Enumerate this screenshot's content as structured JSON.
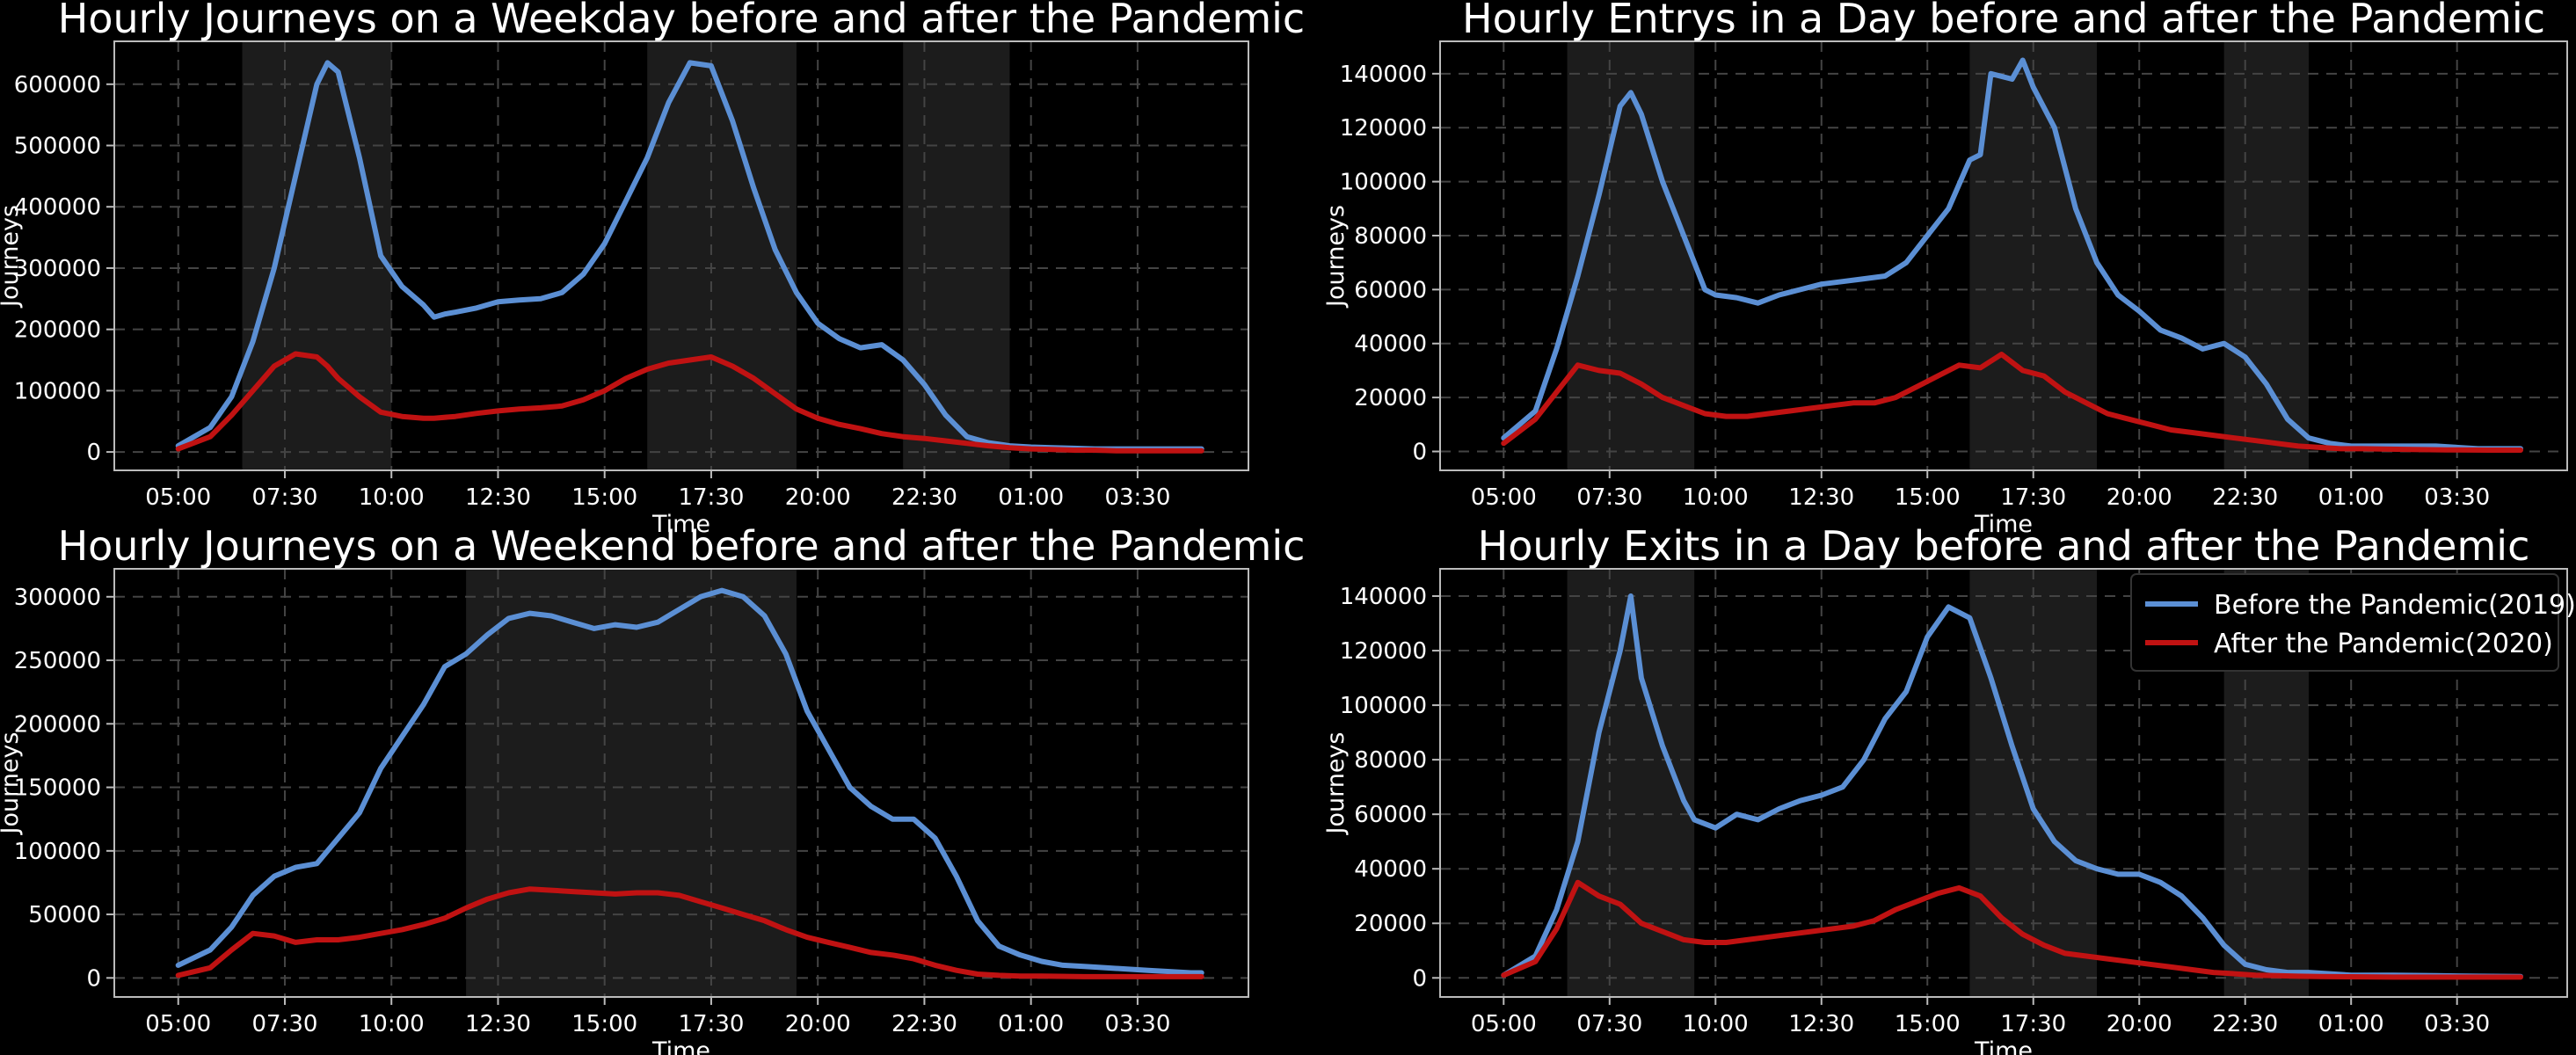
{
  "style": {
    "background": "#000000",
    "before_color": "#5b8fd4",
    "after_color": "#c01212",
    "shade_color": "#1c1c1c",
    "grid_color": "#444444",
    "frame_color": "#bbbbbb",
    "text_color": "#ffffff"
  },
  "chart_data": [
    {
      "type": "line",
      "title": "Hourly Journeys on a Weekday before and after the Pandemic",
      "xlabel": "Time",
      "ylabel": "Journeys",
      "x_tick_labels": [
        "05:00",
        "07:30",
        "10:00",
        "12:30",
        "15:00",
        "17:30",
        "20:00",
        "22:30",
        "01:00",
        "03:30"
      ],
      "x_domain": "hours since 05:00, 00:00 to 24:00 with ticks every 2.5 h",
      "ylim": [
        -30000,
        670000
      ],
      "yticks": [
        0,
        100000,
        200000,
        300000,
        400000,
        500000,
        600000
      ],
      "ytick_labels": [
        "0",
        "100000",
        "200000",
        "300000",
        "400000",
        "500000",
        "600000"
      ],
      "grid": true,
      "shaded_periods": [
        [
          "06:30",
          "10:00"
        ],
        [
          "16:00",
          "19:30"
        ],
        [
          "22:00",
          "00:30"
        ]
      ],
      "series": [
        {
          "name": "Before the Pandemic(2019)",
          "x": [
            0,
            0.75,
            1.25,
            1.75,
            2.25,
            2.75,
            3.25,
            3.5,
            3.75,
            4.25,
            4.75,
            5.25,
            5.75,
            6,
            6.25,
            6.5,
            7,
            7.5,
            8,
            8.5,
            9,
            9.5,
            10,
            10.5,
            11,
            11.5,
            12,
            12.5,
            13,
            13.5,
            14,
            14.5,
            15,
            15.5,
            16,
            16.5,
            17,
            17.5,
            18,
            18.5,
            19,
            19.5,
            20,
            20.5,
            21,
            21.5,
            22,
            22.5,
            23,
            23.5,
            24
          ],
          "y": [
            10000,
            40000,
            90000,
            180000,
            300000,
            450000,
            600000,
            635000,
            620000,
            480000,
            320000,
            270000,
            240000,
            220000,
            225000,
            228000,
            235000,
            245000,
            248000,
            250000,
            260000,
            290000,
            340000,
            410000,
            480000,
            570000,
            635000,
            630000,
            540000,
            430000,
            330000,
            260000,
            210000,
            185000,
            170000,
            175000,
            150000,
            110000,
            60000,
            25000,
            15000,
            10000,
            8000,
            7000,
            6000,
            5000,
            5000,
            5000,
            5000,
            5000,
            5000
          ]
        },
        {
          "name": "After the Pandemic(2020)",
          "x": [
            0,
            0.75,
            1.25,
            1.75,
            2.25,
            2.75,
            3.25,
            3.5,
            3.75,
            4.25,
            4.75,
            5.25,
            5.75,
            6,
            6.5,
            7,
            7.5,
            8,
            8.5,
            9,
            9.5,
            10,
            10.5,
            11,
            11.5,
            12,
            12.5,
            13,
            13.5,
            14,
            14.5,
            15,
            15.5,
            16,
            16.5,
            17,
            17.5,
            18,
            18.5,
            19,
            19.5,
            20,
            20.5,
            21,
            21.5,
            22,
            22.5,
            23,
            23.5,
            24
          ],
          "y": [
            5000,
            25000,
            60000,
            100000,
            140000,
            160000,
            155000,
            140000,
            120000,
            90000,
            65000,
            58000,
            55000,
            55000,
            58000,
            63000,
            67000,
            70000,
            72000,
            75000,
            85000,
            100000,
            120000,
            135000,
            145000,
            150000,
            155000,
            140000,
            120000,
            95000,
            70000,
            55000,
            45000,
            38000,
            30000,
            25000,
            22000,
            18000,
            14000,
            10000,
            7000,
            5000,
            4000,
            3000,
            3000,
            2000,
            2000,
            2000,
            2000,
            2000
          ]
        }
      ]
    },
    {
      "type": "line",
      "title": "Hourly Entrys in a Day before and after the Pandemic",
      "xlabel": "Time",
      "ylabel": "Journeys",
      "x_tick_labels": [
        "05:00",
        "07:30",
        "10:00",
        "12:30",
        "15:00",
        "17:30",
        "20:00",
        "22:30",
        "01:00",
        "03:30"
      ],
      "x_domain": "hours since 05:00, 00:00 to 24:00 with ticks every 2.5 h",
      "ylim": [
        -7000,
        152000
      ],
      "yticks": [
        0,
        20000,
        40000,
        60000,
        80000,
        100000,
        120000,
        140000
      ],
      "ytick_labels": [
        "0",
        "20000",
        "40000",
        "60000",
        "80000",
        "100000",
        "120000",
        "140000"
      ],
      "grid": true,
      "shaded_periods": [
        [
          "06:30",
          "09:30"
        ],
        [
          "16:00",
          "19:00"
        ],
        [
          "22:00",
          "00:00"
        ]
      ],
      "series": [
        {
          "name": "Before the Pandemic(2019)",
          "x": [
            0,
            0.75,
            1.25,
            1.75,
            2.25,
            2.75,
            3,
            3.25,
            3.75,
            4.25,
            4.75,
            5,
            5.5,
            6,
            6.5,
            7,
            7.5,
            8,
            8.5,
            9,
            9.5,
            10,
            10.5,
            11,
            11.25,
            11.5,
            12,
            12.25,
            12.5,
            13,
            13.5,
            14,
            14.5,
            15,
            15.5,
            16,
            16.5,
            17,
            17.5,
            18,
            18.5,
            19,
            19.5,
            20,
            20.5,
            21,
            21.5,
            22,
            23,
            24
          ],
          "y": [
            5000,
            15000,
            38000,
            65000,
            95000,
            128000,
            133000,
            125000,
            100000,
            80000,
            60000,
            58000,
            57000,
            55000,
            58000,
            60000,
            62000,
            63000,
            64000,
            65000,
            70000,
            80000,
            90000,
            108000,
            110000,
            140000,
            138000,
            145000,
            135000,
            120000,
            90000,
            70000,
            58000,
            52000,
            45000,
            42000,
            38000,
            40000,
            35000,
            25000,
            12000,
            5000,
            3000,
            2000,
            2000,
            2000,
            2000,
            2000,
            1000,
            1000
          ]
        },
        {
          "name": "After the Pandemic(2020)",
          "x": [
            0,
            0.75,
            1.25,
            1.75,
            2.25,
            2.75,
            3.25,
            3.75,
            4.25,
            4.75,
            5.25,
            5.75,
            6.25,
            6.75,
            7.25,
            7.75,
            8.25,
            8.75,
            9.25,
            9.75,
            10.25,
            10.75,
            11.25,
            11.75,
            12.25,
            12.75,
            13.25,
            13.75,
            14.25,
            14.75,
            15.25,
            15.75,
            16.25,
            16.75,
            17.25,
            17.75,
            18.25,
            18.75,
            19.25,
            19.75,
            20.25,
            21.25,
            22.25,
            23.25,
            24
          ],
          "y": [
            3000,
            12000,
            22000,
            32000,
            30000,
            29000,
            25000,
            20000,
            17000,
            14000,
            13000,
            13000,
            14000,
            15000,
            16000,
            17000,
            18000,
            18000,
            20000,
            24000,
            28000,
            32000,
            31000,
            36000,
            30000,
            28000,
            22000,
            18000,
            14000,
            12000,
            10000,
            8000,
            7000,
            6000,
            5000,
            4000,
            3000,
            2000,
            1500,
            1000,
            1000,
            800,
            600,
            500,
            500
          ]
        }
      ]
    },
    {
      "type": "line",
      "title": "Hourly Journeys on a Weekend before and after the Pandemic",
      "xlabel": "Time",
      "ylabel": "Journeys",
      "x_tick_labels": [
        "05:00",
        "07:30",
        "10:00",
        "12:30",
        "15:00",
        "17:30",
        "20:00",
        "22:30",
        "01:00",
        "03:30"
      ],
      "x_domain": "hours since 05:00, 00:00 to 24:00 with ticks every 2.5 h",
      "ylim": [
        -15000,
        322000
      ],
      "yticks": [
        0,
        50000,
        100000,
        150000,
        200000,
        250000,
        300000
      ],
      "ytick_labels": [
        "0",
        "50000",
        "100000",
        "150000",
        "200000",
        "250000",
        "300000"
      ],
      "grid": true,
      "shaded_periods": [
        [
          "11:45",
          "19:30"
        ]
      ],
      "series": [
        {
          "name": "Before the Pandemic(2019)",
          "x": [
            0,
            0.75,
            1.25,
            1.75,
            2.25,
            2.75,
            3.25,
            3.75,
            4.25,
            4.75,
            5.25,
            5.75,
            6.25,
            6.75,
            7.25,
            7.75,
            8.25,
            8.75,
            9.25,
            9.75,
            10.25,
            10.75,
            11.25,
            11.75,
            12.25,
            12.75,
            13.25,
            13.75,
            14.25,
            14.75,
            15.25,
            15.75,
            16.25,
            16.75,
            17.25,
            17.75,
            18.25,
            18.75,
            19.25,
            19.75,
            20.25,
            20.75,
            21.25,
            21.75,
            22.25,
            22.75,
            23.25,
            23.75,
            24
          ],
          "y": [
            10000,
            22000,
            40000,
            65000,
            80000,
            87000,
            90000,
            110000,
            130000,
            165000,
            190000,
            215000,
            245000,
            255000,
            270000,
            283000,
            287000,
            285000,
            280000,
            275000,
            278000,
            276000,
            280000,
            290000,
            300000,
            305000,
            300000,
            285000,
            255000,
            210000,
            180000,
            150000,
            135000,
            125000,
            125000,
            110000,
            80000,
            45000,
            25000,
            18000,
            13000,
            10000,
            9000,
            8000,
            7000,
            6000,
            5000,
            4000,
            4000
          ]
        },
        {
          "name": "After the Pandemic(2020)",
          "x": [
            0,
            0.75,
            1.25,
            1.75,
            2.25,
            2.75,
            3.25,
            3.75,
            4.25,
            4.75,
            5.25,
            5.75,
            6.25,
            6.75,
            7.25,
            7.75,
            8.25,
            8.75,
            9.25,
            9.75,
            10.25,
            10.75,
            11.25,
            11.75,
            12.25,
            12.75,
            13.25,
            13.75,
            14.25,
            14.75,
            15.25,
            15.75,
            16.25,
            16.75,
            17.25,
            17.75,
            18.25,
            18.75,
            19.25,
            19.75,
            20.25,
            21.25,
            22.25,
            23.25,
            24
          ],
          "y": [
            2000,
            8000,
            22000,
            35000,
            33000,
            28000,
            30000,
            30000,
            32000,
            35000,
            38000,
            42000,
            47000,
            55000,
            62000,
            67000,
            70000,
            69000,
            68000,
            67000,
            66000,
            67000,
            67000,
            65000,
            60000,
            55000,
            50000,
            45000,
            38000,
            32000,
            28000,
            24000,
            20000,
            18000,
            15000,
            10000,
            6000,
            3000,
            2000,
            1500,
            1500,
            1000,
            1000,
            1000,
            1000
          ]
        }
      ]
    },
    {
      "type": "line",
      "title": "Hourly Exits in a Day before and after the Pandemic",
      "xlabel": "Time",
      "ylabel": "Journeys",
      "x_tick_labels": [
        "05:00",
        "07:30",
        "10:00",
        "12:30",
        "15:00",
        "17:30",
        "20:00",
        "22:30",
        "01:00",
        "03:30"
      ],
      "x_domain": "hours since 05:00, 00:00 to 24:00 with ticks every 2.5 h",
      "ylim": [
        -7000,
        150000
      ],
      "yticks": [
        0,
        20000,
        40000,
        60000,
        80000,
        100000,
        120000,
        140000
      ],
      "ytick_labels": [
        "0",
        "20000",
        "40000",
        "60000",
        "80000",
        "100000",
        "120000",
        "140000"
      ],
      "grid": true,
      "legend_position": "top-right",
      "shaded_periods": [
        [
          "06:30",
          "09:30"
        ],
        [
          "16:00",
          "19:00"
        ],
        [
          "22:00",
          "00:00"
        ]
      ],
      "series": [
        {
          "name": "Before the Pandemic(2019)",
          "x": [
            0,
            0.75,
            1.25,
            1.75,
            2.25,
            2.75,
            3,
            3.25,
            3.75,
            4.25,
            4.5,
            5,
            5.5,
            6,
            6.5,
            7,
            7.5,
            8,
            8.5,
            9,
            9.5,
            10,
            10.5,
            11,
            11.5,
            12,
            12.5,
            13,
            13.5,
            14,
            14.5,
            15,
            15.5,
            16,
            16.5,
            17,
            17.5,
            18,
            18.5,
            19,
            19.5,
            20,
            21,
            22,
            23,
            24
          ],
          "y": [
            1000,
            8000,
            25000,
            50000,
            90000,
            120000,
            140000,
            110000,
            85000,
            65000,
            58000,
            55000,
            60000,
            58000,
            62000,
            65000,
            67000,
            70000,
            80000,
            95000,
            105000,
            125000,
            136000,
            132000,
            110000,
            85000,
            62000,
            50000,
            43000,
            40000,
            38000,
            38000,
            35000,
            30000,
            22000,
            12000,
            5000,
            3000,
            2000,
            2000,
            1500,
            1000,
            1000,
            800,
            600,
            500
          ]
        },
        {
          "name": "After the Pandemic(2020)",
          "x": [
            0,
            0.75,
            1.25,
            1.75,
            2.25,
            2.75,
            3.25,
            3.75,
            4.25,
            4.75,
            5.25,
            5.75,
            6.25,
            6.75,
            7.25,
            7.75,
            8.25,
            8.75,
            9.25,
            9.75,
            10.25,
            10.75,
            11.25,
            11.75,
            12.25,
            12.75,
            13.25,
            13.75,
            14.25,
            14.75,
            15.25,
            15.75,
            16.25,
            16.75,
            17.25,
            17.75,
            18.25,
            18.75,
            19.25,
            20,
            21,
            22,
            23,
            24
          ],
          "y": [
            1000,
            6000,
            18000,
            35000,
            30000,
            27000,
            20000,
            17000,
            14000,
            13000,
            13000,
            14000,
            15000,
            16000,
            17000,
            18000,
            19000,
            21000,
            25000,
            28000,
            31000,
            33000,
            30000,
            22000,
            16000,
            12000,
            9000,
            8000,
            7000,
            6000,
            5000,
            4000,
            3000,
            2000,
            1500,
            1000,
            800,
            600,
            500,
            400,
            300,
            300,
            300,
            300
          ]
        }
      ]
    }
  ]
}
